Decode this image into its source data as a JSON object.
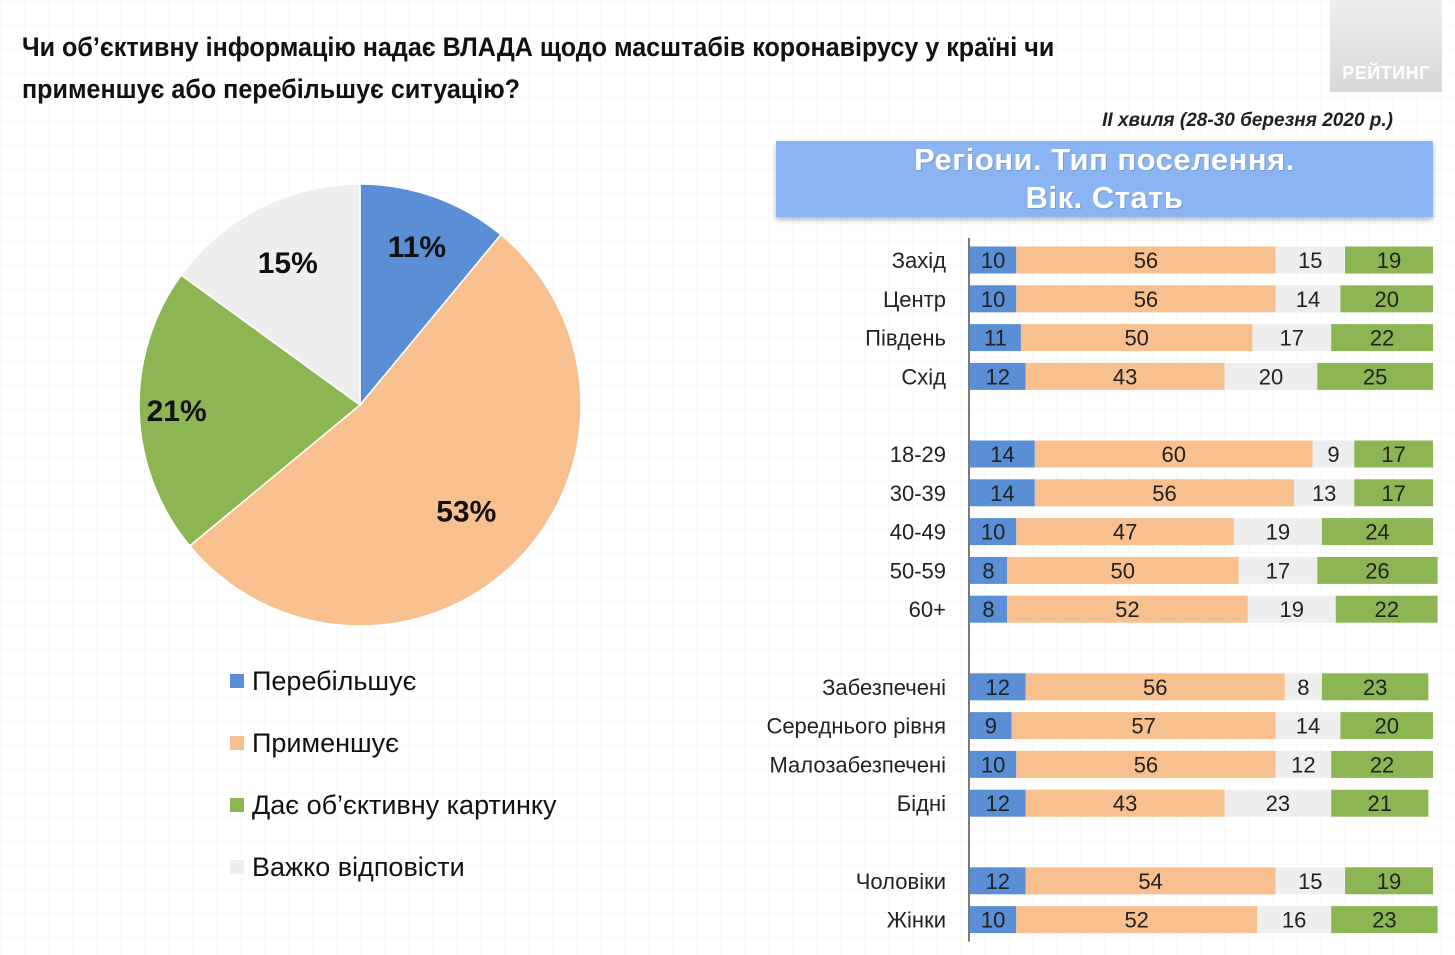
{
  "title": {
    "line1": "Чи об’єктивну інформацію надає ВЛАДА щодо масштабів коронавірусу у країні чи",
    "line2": "применшує або перебільшує ситуацію?"
  },
  "logo": {
    "text": "РЕЙТИНГ"
  },
  "wave_note": "II хвиля (28-30 березня 2020 р.)",
  "banner": {
    "line1": "Регіони. Тип поселення.",
    "line2": "Вік. Стать"
  },
  "colors": {
    "blue": "#5a8fd6",
    "orange": "#f8c08f",
    "grey": "#eeeeee",
    "green": "#8cb653",
    "banner": "#8ab4f2"
  },
  "legend": {
    "items": [
      {
        "label": "Перебільшує",
        "color": "#5a8fd6"
      },
      {
        "label": "Применшує",
        "color": "#f8c08f"
      },
      {
        "label": "Дає об’єктивну картинку",
        "color": "#8cb653"
      },
      {
        "label": "Важко відповісти",
        "color": "#eeeeee"
      }
    ]
  },
  "chart_data": [
    {
      "type": "pie",
      "slices": [
        {
          "label": "Перебільшує",
          "value": 11,
          "display": "11%",
          "color": "#5a8fd6"
        },
        {
          "label": "Применшує",
          "value": 53,
          "display": "53%",
          "color": "#f8c08f"
        },
        {
          "label": "Дає об’єктивну картинку",
          "value": 21,
          "display": "21%",
          "color": "#8cb653"
        },
        {
          "label": "Важко відповісти",
          "value": 15,
          "display": "15%",
          "color": "#eeeeee"
        }
      ]
    },
    {
      "type": "bar",
      "orientation": "horizontal",
      "stacked": true,
      "categories": [
        "Захід",
        "Центр",
        "Південь",
        "Схід",
        "18-29",
        "30-39",
        "40-49",
        "50-59",
        "60+",
        "Забезпечені",
        "Середнього рівня",
        "Малозабезпечені",
        "Бідні",
        "Чоловіки",
        "Жінки"
      ],
      "groups": [
        4,
        5,
        4,
        2
      ],
      "series": [
        {
          "name": "Перебільшує",
          "color": "#5a8fd6",
          "values": [
            10,
            10,
            11,
            12,
            14,
            14,
            10,
            8,
            8,
            12,
            9,
            10,
            12,
            12,
            10
          ]
        },
        {
          "name": "Применшує",
          "color": "#f8c08f",
          "values": [
            56,
            56,
            50,
            43,
            60,
            56,
            47,
            50,
            52,
            56,
            57,
            56,
            43,
            54,
            52
          ]
        },
        {
          "name": "Важко відповісти",
          "color": "#eeeeee",
          "values": [
            15,
            14,
            17,
            20,
            9,
            13,
            19,
            17,
            19,
            8,
            14,
            12,
            23,
            15,
            16
          ]
        },
        {
          "name": "Дає об’єктивну картинку",
          "color": "#8cb653",
          "values": [
            19,
            20,
            22,
            25,
            17,
            17,
            24,
            26,
            22,
            23,
            20,
            22,
            21,
            19,
            23
          ]
        }
      ],
      "xlim": [
        0,
        100
      ]
    }
  ]
}
